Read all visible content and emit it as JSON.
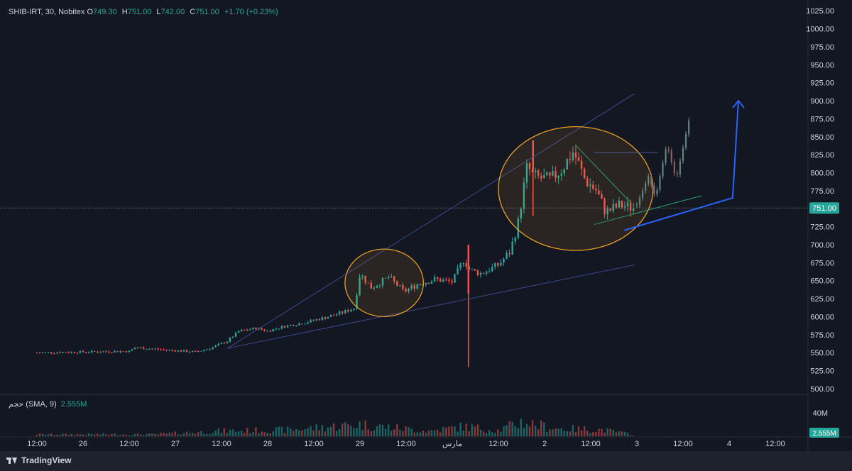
{
  "header": {
    "symbol": "SHIB-IRT, 30, Nobitex",
    "o_label": "O",
    "o_value": "749.30",
    "h_label": "H",
    "h_value": "751.00",
    "l_label": "L",
    "l_value": "742.00",
    "c_label": "C",
    "c_value": "751.00",
    "change": "+1.70 (+0.23%)"
  },
  "volume_legend": {
    "label": "حجم (SMA, 9)",
    "value": "2.555M"
  },
  "footer": {
    "brand": "TradingView"
  },
  "colors": {
    "background": "#131722",
    "up": "#26a69a",
    "down": "#ef5350",
    "ellipse": "#f5a623",
    "trendline": "#3b4a8c",
    "arrow": "#2962ff",
    "price_line": "#5d606b"
  },
  "chart_data": {
    "type": "candlestick",
    "y_axis": {
      "ticks": [
        "1025.00",
        "1000.00",
        "975.00",
        "950.00",
        "925.00",
        "900.00",
        "875.00",
        "850.00",
        "825.00",
        "800.00",
        "775.00",
        "750.00",
        "725.00",
        "700.00",
        "675.00",
        "650.00",
        "625.00",
        "600.00",
        "575.00",
        "550.00",
        "525.00",
        "500.00"
      ],
      "range": [
        492,
        1040
      ]
    },
    "x_axis": {
      "ticks": [
        "12:00",
        "26",
        "12:00",
        "27",
        "12:00",
        "28",
        "12:00",
        "29",
        "12:00",
        "مارس",
        "12:00",
        "2",
        "12:00",
        "3",
        "12:00",
        "4",
        "12:00"
      ]
    },
    "current_price": "751.00",
    "volume_axis_label": "40M",
    "volume_current": "2.555M",
    "price_path": [
      {
        "x": 0.0,
        "y": 550
      },
      {
        "x": 8.0,
        "y": 552
      },
      {
        "x": 8.5,
        "y": 557
      },
      {
        "x": 11.0,
        "y": 554
      },
      {
        "x": 13.8,
        "y": 551
      },
      {
        "x": 15.0,
        "y": 556
      },
      {
        "x": 16.5,
        "y": 566
      },
      {
        "x": 17.5,
        "y": 580
      },
      {
        "x": 19.0,
        "y": 584
      },
      {
        "x": 20.0,
        "y": 580
      },
      {
        "x": 21.5,
        "y": 587
      },
      {
        "x": 23.0,
        "y": 591
      },
      {
        "x": 25.0,
        "y": 599
      },
      {
        "x": 26.5,
        "y": 606
      },
      {
        "x": 27.5,
        "y": 612
      },
      {
        "x": 28.0,
        "y": 660
      },
      {
        "x": 29.0,
        "y": 640
      },
      {
        "x": 30.5,
        "y": 655
      },
      {
        "x": 31.8,
        "y": 635
      },
      {
        "x": 33.0,
        "y": 645
      },
      {
        "x": 34.5,
        "y": 652
      },
      {
        "x": 36.0,
        "y": 648
      },
      {
        "x": 37.0,
        "y": 680
      },
      {
        "x": 37.5,
        "y": 665
      },
      {
        "x": 38.5,
        "y": 660
      },
      {
        "x": 40.0,
        "y": 672
      },
      {
        "x": 41.0,
        "y": 690
      },
      {
        "x": 41.7,
        "y": 730
      },
      {
        "x": 42.5,
        "y": 810
      },
      {
        "x": 43.0,
        "y": 795
      },
      {
        "x": 44.5,
        "y": 790
      },
      {
        "x": 45.5,
        "y": 805
      },
      {
        "x": 46.5,
        "y": 830
      },
      {
        "x": 47.5,
        "y": 790
      },
      {
        "x": 48.5,
        "y": 775
      },
      {
        "x": 49.3,
        "y": 745
      },
      {
        "x": 50.5,
        "y": 755
      },
      {
        "x": 51.7,
        "y": 751
      }
    ],
    "volume_pattern": [
      {
        "x": 0.0,
        "v": 3
      },
      {
        "x": 10.0,
        "v": 3
      },
      {
        "x": 16.0,
        "v": 8
      },
      {
        "x": 22.0,
        "v": 10
      },
      {
        "x": 28.0,
        "v": 18
      },
      {
        "x": 34.0,
        "v": 8
      },
      {
        "x": 37.0,
        "v": 15
      },
      {
        "x": 40.0,
        "v": 9
      },
      {
        "x": 42.0,
        "v": 22
      },
      {
        "x": 45.0,
        "v": 12
      },
      {
        "x": 49.0,
        "v": 10
      },
      {
        "x": 51.7,
        "v": 2.5
      }
    ],
    "volume_range": [
      0,
      52
    ],
    "spikes": [
      {
        "x": 37.4,
        "low": 530,
        "high": 700
      },
      {
        "x": 43.0,
        "low": 740,
        "high": 845
      }
    ],
    "annotations": {
      "ellipses": [
        {
          "cx": 30.1,
          "cy": 647,
          "rx": 3.4,
          "ry": 47
        },
        {
          "cx": 46.7,
          "cy": 778,
          "rx": 6.7,
          "ry": 86
        }
      ],
      "channel_lines": [
        {
          "x1": 16.5,
          "y1": 556,
          "x2": 51.8,
          "y2": 910
        },
        {
          "x1": 16.5,
          "y1": 556,
          "x2": 51.8,
          "y2": 672
        }
      ],
      "inner_lines": [
        {
          "x1": 48.3,
          "y1": 828,
          "x2": 53.8,
          "y2": 828
        },
        {
          "x1": 46.7,
          "y1": 838,
          "x2": 51.5,
          "y2": 758
        },
        {
          "x1": 48.3,
          "y1": 728,
          "x2": 57.6,
          "y2": 768
        }
      ],
      "projection_path": [
        {
          "x": 52.0,
          "y": 755
        },
        {
          "x": 53.0,
          "y": 795
        },
        {
          "x": 53.6,
          "y": 765
        },
        {
          "x": 54.6,
          "y": 840
        },
        {
          "x": 55.4,
          "y": 790
        },
        {
          "x": 56.6,
          "y": 880
        }
      ],
      "arrow": [
        {
          "x": 50.9,
          "y": 720
        },
        {
          "x": 60.3,
          "y": 765
        },
        {
          "x": 60.8,
          "y": 900
        }
      ]
    }
  }
}
